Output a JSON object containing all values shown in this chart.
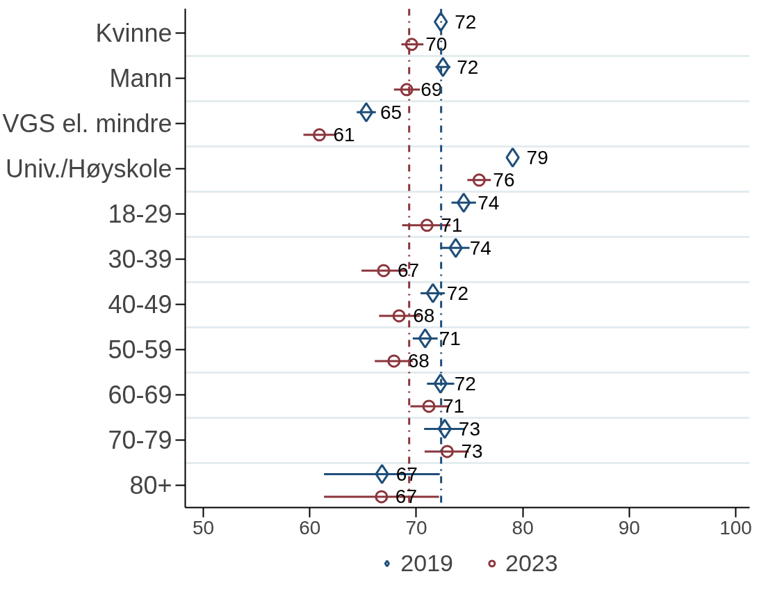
{
  "chart_data": {
    "type": "scatter",
    "orientation": "horizontal",
    "categories": [
      "Kvinne",
      "Mann",
      "VGS el. mindre",
      "Univ./Høyskole",
      "18-29",
      "30-39",
      "40-49",
      "50-59",
      "60-69",
      "70-79",
      "80+"
    ],
    "series": [
      {
        "name": "2019",
        "color": "#1f4e79",
        "marker": "diamond",
        "values": [
          72.3,
          72.5,
          65.3,
          79.05,
          74.45,
          73.7,
          71.56,
          70.83,
          72.27,
          72.67,
          66.78
        ],
        "errors": [
          null,
          [
            71.8,
            73.2
          ],
          [
            64.4,
            66.2
          ],
          null,
          [
            73.3,
            75.6
          ],
          [
            72.33,
            75.0
          ],
          [
            70.4,
            72.67
          ],
          [
            69.67,
            72.0
          ],
          [
            71.0,
            73.56
          ],
          [
            70.73,
            74.56
          ],
          [
            61.33,
            72.2
          ]
        ],
        "value_labels": [
          "72",
          "72",
          "65",
          "79",
          "74",
          "74",
          "72",
          "71",
          "72",
          "73",
          "67"
        ]
      },
      {
        "name": "2023",
        "color": "#8b353c",
        "marker": "circle",
        "values": [
          69.56,
          69.1,
          60.9,
          75.9,
          71.0,
          66.93,
          68.38,
          67.9,
          71.18,
          72.9,
          66.73
        ],
        "errors": [
          [
            68.6,
            70.67
          ],
          [
            67.9,
            70.33
          ],
          [
            59.4,
            62.3
          ],
          [
            74.8,
            77.0
          ],
          [
            68.67,
            73.2
          ],
          [
            64.85,
            69.07
          ],
          [
            66.5,
            70.33
          ],
          [
            66.1,
            69.67
          ],
          [
            69.45,
            73.0
          ],
          [
            70.78,
            74.93
          ],
          [
            61.33,
            72.13
          ]
        ],
        "value_labels": [
          "70",
          "69",
          "61",
          "76",
          "71",
          "67",
          "68",
          "68",
          "71",
          "73",
          "67"
        ]
      }
    ],
    "ref_lines": [
      {
        "axis": "x",
        "value": 69.33,
        "color": "#8b353c",
        "line_style": "dashed"
      },
      {
        "axis": "x",
        "value": 72.33,
        "color": "#1f4e79",
        "line_style": "dashed"
      }
    ],
    "xlim": [
      48.3,
      101.3
    ],
    "xticks": [
      50,
      60,
      70,
      80,
      90,
      100
    ],
    "grid": "y",
    "legend": "bottom"
  }
}
